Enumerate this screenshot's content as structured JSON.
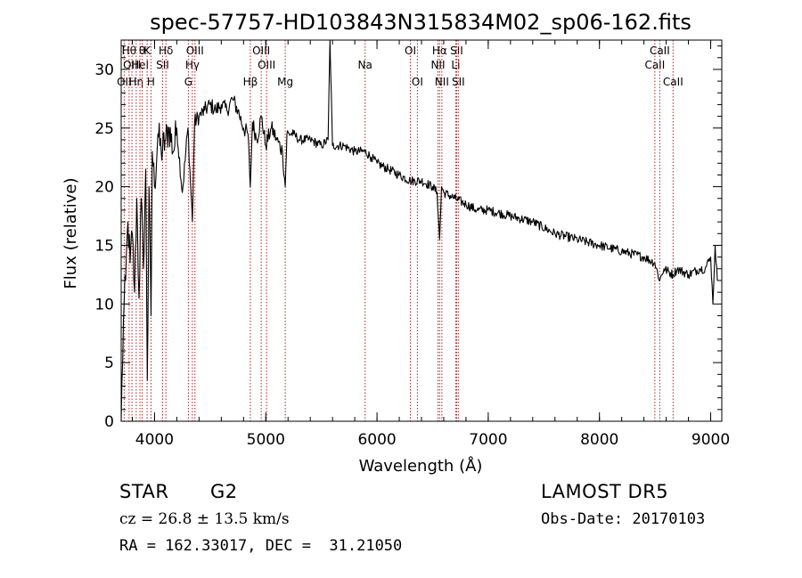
{
  "chart_data": {
    "type": "line",
    "title": "spec-57757-HD103843N315834M02_sp06-162.fits",
    "xlabel": "Wavelength (Å)",
    "ylabel": "Flux (relative)",
    "xlim": [
      3700,
      9100
    ],
    "ylim": [
      0,
      32.5
    ],
    "xticks": [
      4000,
      5000,
      6000,
      7000,
      8000,
      9000
    ],
    "yticks": [
      0,
      5,
      10,
      15,
      20,
      25,
      30
    ],
    "grid": false,
    "line_color": "#000000",
    "marker_color": "#b22222",
    "series": [
      {
        "x": [
          3700,
          3720,
          3740,
          3760,
          3780,
          3800,
          3820,
          3840,
          3860,
          3880,
          3900,
          3920,
          3935,
          3950,
          3968,
          3980,
          4000,
          4030,
          4060,
          4100,
          4130,
          4170,
          4200,
          4250,
          4300,
          4340,
          4360,
          4400,
          4450,
          4500,
          4550,
          4600,
          4650,
          4700,
          4750,
          4800,
          4840,
          4861,
          4880,
          4920,
          4960,
          5000,
          5050,
          5100,
          5150,
          5175,
          5190,
          5250,
          5300,
          5400,
          5500,
          5560,
          5577,
          5600,
          5700,
          5800,
          5893,
          5950,
          6000,
          6100,
          6200,
          6300,
          6400,
          6500,
          6540,
          6563,
          6580,
          6600,
          6700,
          6800,
          6900,
          7000,
          7200,
          7400,
          7600,
          7800,
          8000,
          8200,
          8400,
          8498,
          8542,
          8580,
          8662,
          8700,
          8800,
          8900,
          8950,
          9000,
          9020,
          9040,
          9060
        ],
        "y": [
          0,
          8.5,
          12,
          17,
          13.5,
          16,
          11,
          19,
          10.5,
          19,
          13,
          21.5,
          3.5,
          20,
          9,
          23,
          20,
          24.5,
          23,
          24,
          25,
          23,
          25,
          19.5,
          25,
          17,
          25.5,
          26,
          26.5,
          27,
          26.5,
          27,
          26.5,
          27.5,
          26.5,
          25,
          24.5,
          20,
          25.5,
          24,
          26,
          23.5,
          25,
          24,
          23,
          20,
          24.5,
          24.5,
          24,
          24,
          23.5,
          24,
          32.5,
          23.5,
          23.5,
          23,
          23,
          22.5,
          22,
          21.5,
          21,
          20.5,
          20.5,
          20,
          19.5,
          15.5,
          20,
          19.5,
          19,
          18.5,
          18,
          18,
          17.5,
          17,
          16,
          15.5,
          15,
          14.5,
          14,
          13.5,
          12,
          13,
          12.5,
          13,
          12.5,
          13,
          13,
          14,
          10,
          15,
          12
        ]
      }
    ],
    "line_markers": [
      {
        "x": 3727,
        "label": "OII",
        "row": 3
      },
      {
        "x": 3771,
        "label": "Hθ",
        "row": 1
      },
      {
        "x": 3797,
        "label": "OIII",
        "row": 2
      },
      {
        "x": 3835,
        "label": "Hη",
        "row": 3
      },
      {
        "x": 3869,
        "label": "HeI",
        "row": 2
      },
      {
        "x": 3889,
        "label": "θ",
        "row": 1
      },
      {
        "x": 3933,
        "label": "K",
        "row": 1
      },
      {
        "x": 3968,
        "label": "H",
        "row": 3
      },
      {
        "x": 4072,
        "label": "SII",
        "row": 2
      },
      {
        "x": 4102,
        "label": "Hδ",
        "row": 1
      },
      {
        "x": 4304,
        "label": "G",
        "row": 3
      },
      {
        "x": 4340,
        "label": "Hγ",
        "row": 2
      },
      {
        "x": 4363,
        "label": "OIII",
        "row": 1
      },
      {
        "x": 4861,
        "label": "Hβ",
        "row": 3
      },
      {
        "x": 4959,
        "label": "OIII",
        "row": 1
      },
      {
        "x": 5007,
        "label": "OIII",
        "row": 2
      },
      {
        "x": 5175,
        "label": "Mg",
        "row": 3
      },
      {
        "x": 5893,
        "label": "Na",
        "row": 2
      },
      {
        "x": 6300,
        "label": "OI",
        "row": 1
      },
      {
        "x": 6363,
        "label": "OI",
        "row": 3
      },
      {
        "x": 6548,
        "label": "NII",
        "row": 2
      },
      {
        "x": 6563,
        "label": "Hα",
        "row": 1
      },
      {
        "x": 6583,
        "label": "NII",
        "row": 3
      },
      {
        "x": 6708,
        "label": "Li",
        "row": 2
      },
      {
        "x": 6716,
        "label": "SII",
        "row": 1
      },
      {
        "x": 6731,
        "label": "SII",
        "row": 3
      },
      {
        "x": 8498,
        "label": "CaII",
        "row": 2
      },
      {
        "x": 8542,
        "label": "CaII",
        "row": 1
      },
      {
        "x": 8662,
        "label": "CaII",
        "row": 3
      }
    ]
  },
  "info": {
    "object_class": "STAR",
    "subclass": "G2",
    "survey": "LAMOST DR5",
    "redshift": "cz = 26.8 ± 13.5 km/s",
    "obs_date": "Obs-Date: 20170103",
    "coords": "RA = 162.33017, DEC =  31.21050"
  }
}
